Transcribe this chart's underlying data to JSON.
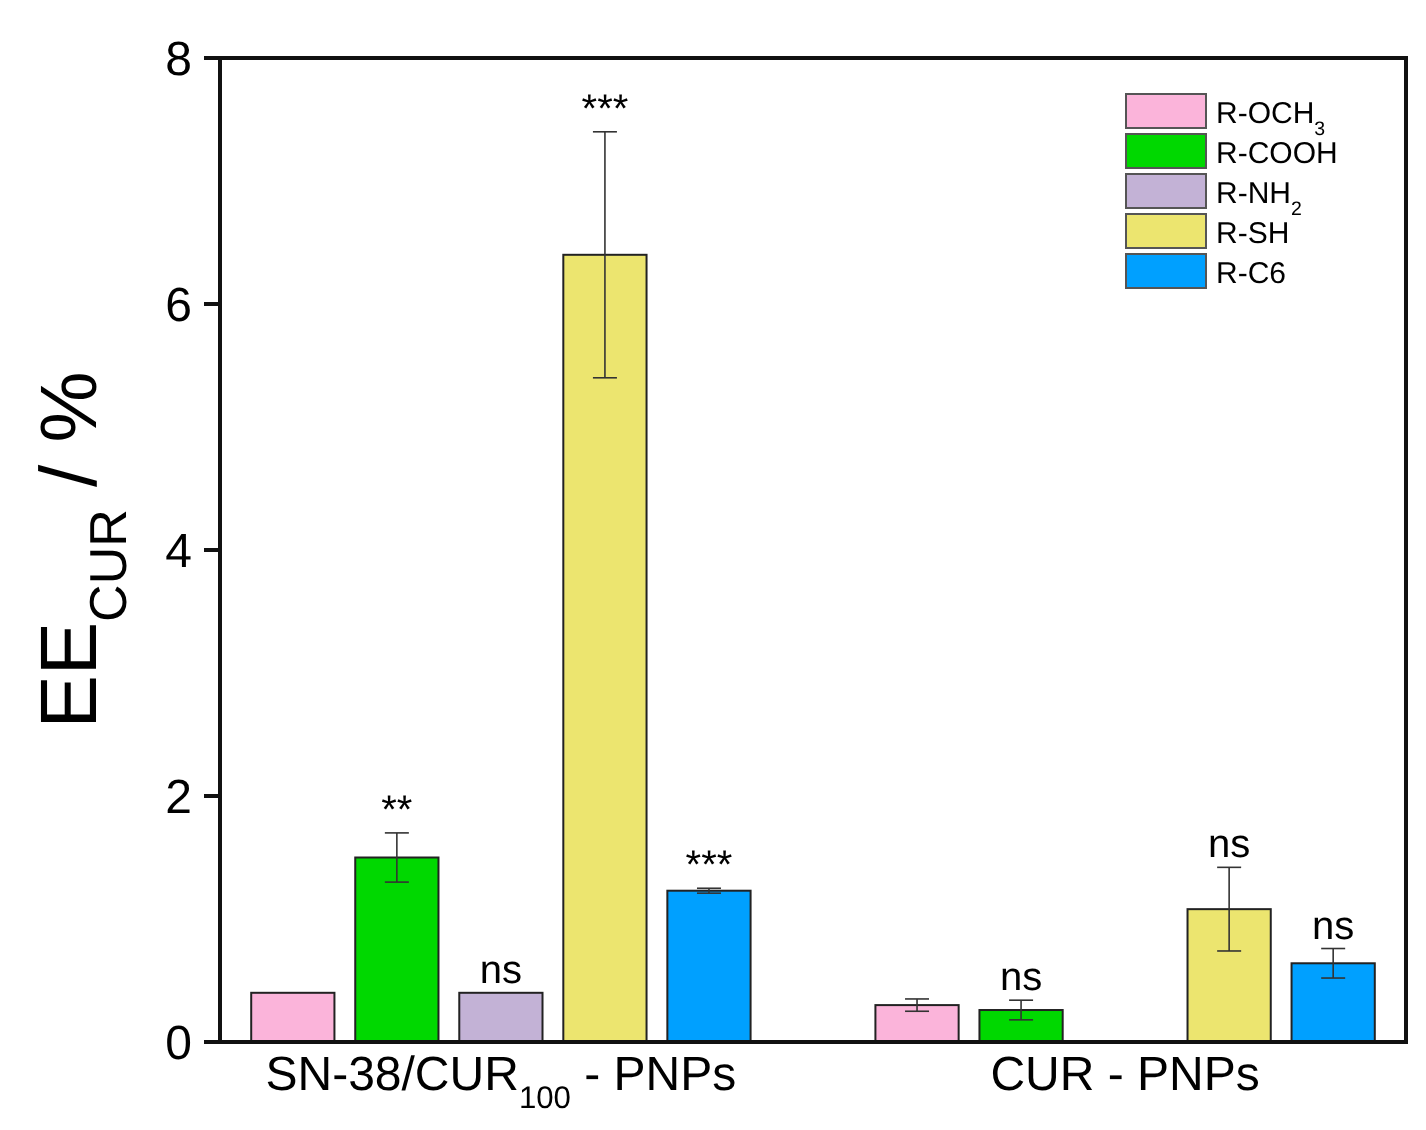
{
  "chart_data": {
    "type": "bar",
    "ylabel": "EE$_{CUR}$ / %",
    "categories": [
      "SN-38/CUR$_{100}$ - PNPs",
      "CUR - PNPs"
    ],
    "series": [
      {
        "name": "R-OCH$_{3}$",
        "color": "#fbb4da",
        "values": [
          0.4,
          0.3
        ],
        "errors": [
          null,
          0.05
        ]
      },
      {
        "name": "R-COOH",
        "color": "#00d800",
        "values": [
          1.5,
          0.26
        ],
        "errors": [
          0.2,
          0.08
        ]
      },
      {
        "name": "R-NH$_{2}$",
        "color": "#c3b2d6",
        "values": [
          0.4,
          null
        ],
        "errors": [
          null,
          null
        ]
      },
      {
        "name": "R-SH",
        "color": "#ece56f",
        "values": [
          6.4,
          1.08
        ],
        "errors": [
          1.0,
          0.34
        ]
      },
      {
        "name": "R-C6",
        "color": "#00a0ff",
        "values": [
          1.23,
          0.64
        ],
        "errors": [
          0.02,
          0.12
        ]
      }
    ],
    "ylim": [
      0,
      8
    ],
    "yticks": [
      0,
      2,
      4,
      6,
      8
    ],
    "grid": false,
    "legend": "top right",
    "annotations": [
      "**",
      "ns",
      "***",
      "***",
      "ns",
      "ns",
      "ns"
    ]
  }
}
